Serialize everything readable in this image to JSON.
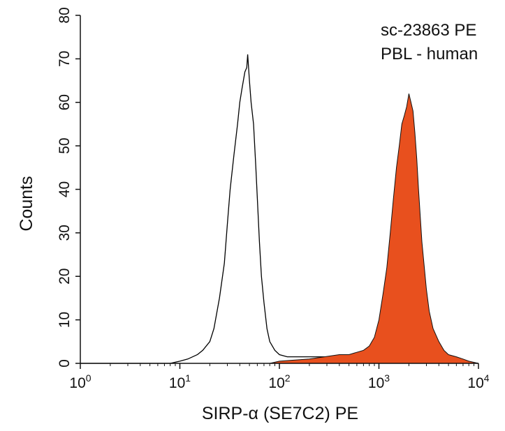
{
  "chart_data": {
    "type": "area",
    "xlabel": "SIRP-α (SE7C2) PE",
    "ylabel": "Counts",
    "xscale": "log",
    "xlim": [
      1,
      10000
    ],
    "ylim": [
      0,
      80
    ],
    "grid": false,
    "legend": "none",
    "annotations": [
      "sc-23863 PE",
      "PBL - human"
    ],
    "y_ticks": [
      0,
      10,
      20,
      30,
      40,
      50,
      60,
      70,
      80
    ],
    "x_ticks": [
      {
        "base": "10",
        "exp": "0",
        "value": 1
      },
      {
        "base": "10",
        "exp": "1",
        "value": 10
      },
      {
        "base": "10",
        "exp": "2",
        "value": 100
      },
      {
        "base": "10",
        "exp": "3",
        "value": 1000
      },
      {
        "base": "10",
        "exp": "4",
        "value": 10000
      }
    ],
    "series": [
      {
        "style": "outline",
        "color": "#000000",
        "x": [
          1,
          8,
          10,
          12,
          15,
          17,
          20,
          22,
          25,
          28,
          30,
          32,
          35,
          38,
          40,
          42,
          45,
          47,
          48,
          50,
          52,
          55,
          58,
          60,
          63,
          66,
          70,
          75,
          80,
          90,
          100,
          120,
          150,
          200,
          300,
          500,
          1000,
          2000,
          5000,
          10000
        ],
        "y": [
          0,
          0,
          0.5,
          1,
          2,
          3,
          5,
          8,
          15,
          23,
          32,
          40,
          48,
          55,
          60,
          63,
          67,
          68,
          71,
          65,
          60,
          55,
          45,
          38,
          28,
          20,
          14,
          8,
          5,
          3,
          2,
          1.5,
          1.5,
          1.5,
          1.5,
          1,
          1,
          1,
          0.5,
          0
        ]
      },
      {
        "style": "filled",
        "color": "#e8501e",
        "x": [
          1,
          80,
          100,
          200,
          400,
          500,
          700,
          800,
          900,
          1000,
          1100,
          1200,
          1300,
          1400,
          1500,
          1600,
          1700,
          1800,
          1900,
          2000,
          2100,
          2200,
          2300,
          2400,
          2500,
          2700,
          3000,
          3200,
          3500,
          4000,
          4500,
          5000,
          6000,
          7000,
          8000,
          10000
        ],
        "y": [
          0,
          0,
          0.5,
          1,
          2,
          2,
          3,
          4,
          6,
          10,
          16,
          22,
          30,
          38,
          45,
          50,
          55,
          57,
          59,
          62,
          60,
          58,
          53,
          47,
          40,
          28,
          17,
          12,
          8,
          5,
          3,
          2,
          1.5,
          1,
          0.5,
          0
        ]
      }
    ]
  }
}
